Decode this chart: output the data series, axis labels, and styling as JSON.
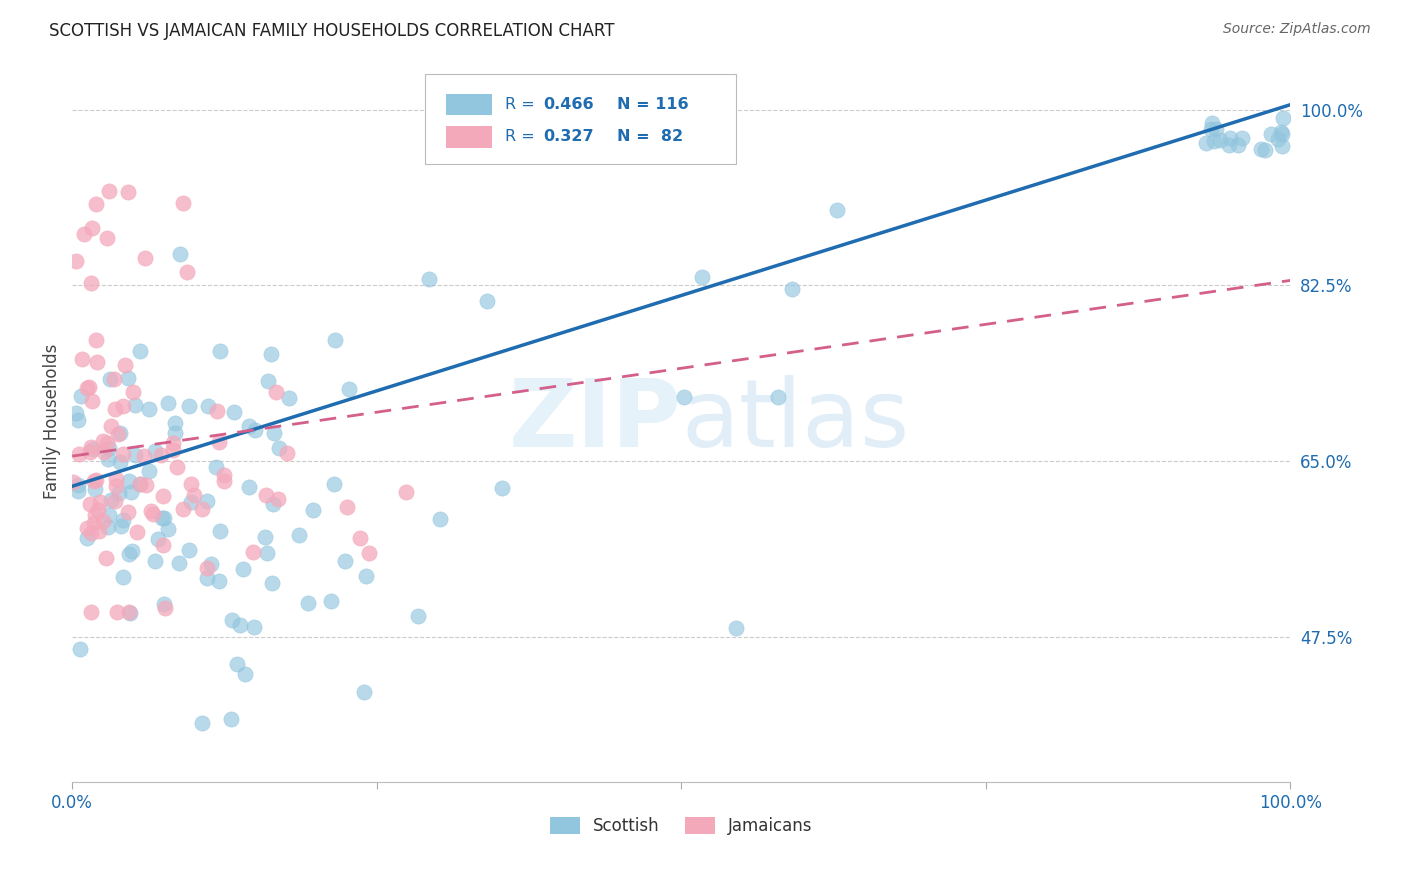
{
  "title": "SCOTTISH VS JAMAICAN FAMILY HOUSEHOLDS CORRELATION CHART",
  "source": "Source: ZipAtlas.com",
  "ylabel": "Family Households",
  "xlim": [
    0.0,
    1.0
  ],
  "ylim": [
    0.33,
    1.05
  ],
  "yticks": [
    0.475,
    0.65,
    0.825,
    1.0
  ],
  "ytick_labels": [
    "47.5%",
    "65.0%",
    "82.5%",
    "100.0%"
  ],
  "watermark": "ZIPatlas",
  "scottish_color": "#92c5de",
  "jamaican_color": "#f4a9bb",
  "line_scottish_color": "#1f6cb0",
  "line_jamaican_color": "#d45f8a",
  "scottish_line_slope": 0.38,
  "scottish_line_intercept": 0.625,
  "jamaican_line_slope": 0.175,
  "jamaican_line_intercept": 0.655,
  "n_scottish": 116,
  "n_jamaican": 82
}
